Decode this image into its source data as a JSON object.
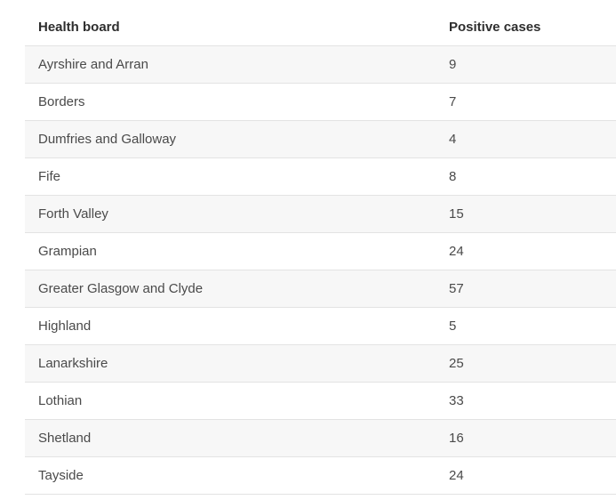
{
  "table": {
    "headers": [
      "Health board",
      "Positive cases"
    ],
    "rows": [
      [
        "Ayrshire and Arran",
        "9"
      ],
      [
        "Borders",
        "7"
      ],
      [
        "Dumfries and Galloway",
        "4"
      ],
      [
        "Fife",
        "8"
      ],
      [
        "Forth Valley",
        "15"
      ],
      [
        "Grampian",
        "24"
      ],
      [
        "Greater Glasgow and Clyde",
        "57"
      ],
      [
        "Highland",
        "5"
      ],
      [
        "Lanarkshire",
        "25"
      ],
      [
        "Lothian",
        "33"
      ],
      [
        "Shetland",
        "16"
      ],
      [
        "Tayside",
        "24"
      ]
    ]
  }
}
